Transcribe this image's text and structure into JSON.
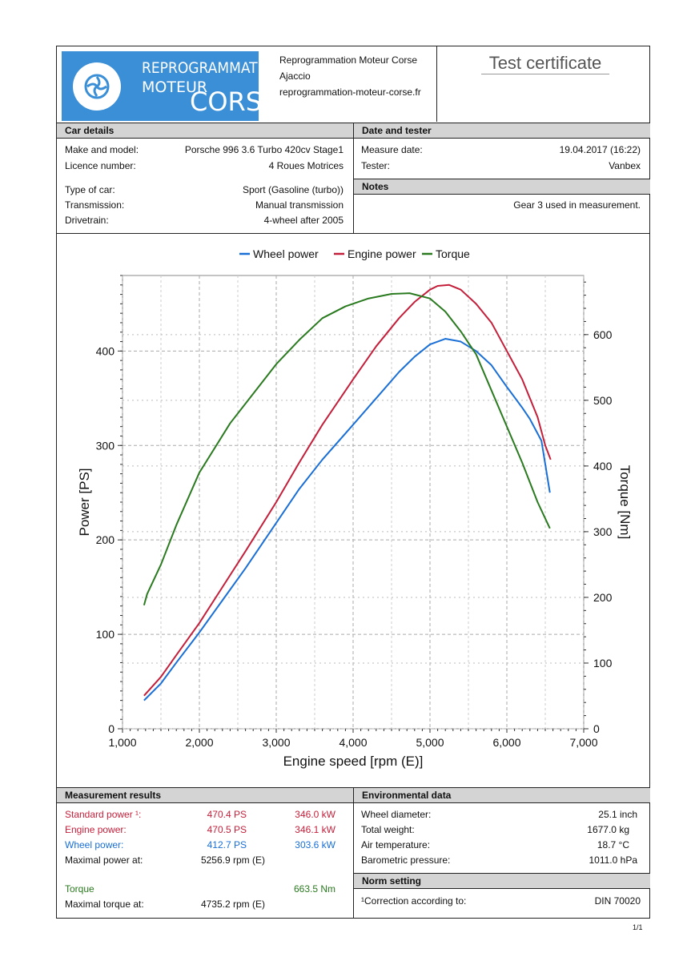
{
  "header": {
    "logo": {
      "line1": "REPROGRAMMATION",
      "line2": "MOTEUR",
      "line3": "CORSE"
    },
    "company": {
      "name": "Reprogrammation Moteur Corse",
      "city": "Ajaccio",
      "website": "reprogrammation-moteur-corse.fr"
    },
    "title": "Test certificate"
  },
  "car_details": {
    "heading": "Car details",
    "rows": [
      {
        "label": "Make and model:",
        "value": "Porsche 996 3.6 Turbo 420cv Stage1"
      },
      {
        "label": "Licence number:",
        "value": "4 Roues Motrices"
      },
      {
        "label": "Type of car:",
        "value": "Sport (Gasoline (turbo))"
      },
      {
        "label": "Transmission:",
        "value": "Manual transmission"
      },
      {
        "label": "Drivetrain:",
        "value": "4-wheel after 2005"
      }
    ]
  },
  "date_tester": {
    "heading": "Date and tester",
    "rows": [
      {
        "label": "Measure date:",
        "value": "19.04.2017 (16:22)"
      },
      {
        "label": "Tester:",
        "value": "Vanbex"
      }
    ]
  },
  "notes": {
    "heading": "Notes",
    "text": "Gear 3 used in measurement."
  },
  "colors": {
    "wheel": "#1a6fd6",
    "engine": "#c41f3a",
    "torque": "#2a7a1f"
  },
  "chart_data": {
    "type": "line",
    "title": "",
    "xlabel": "Engine speed [rpm (E)]",
    "ylabel": "Power [PS]",
    "y2label": "Torque [Nm]",
    "xlim": [
      1000,
      7000
    ],
    "ylim": [
      0,
      480
    ],
    "y2lim": [
      0,
      690
    ],
    "x_ticks": [
      1000,
      2000,
      3000,
      4000,
      5000,
      6000,
      7000
    ],
    "x_tick_labels": [
      "1,000",
      "2,000",
      "3,000",
      "4,000",
      "5,000",
      "6,000",
      "7,000"
    ],
    "y_ticks": [
      0,
      100,
      200,
      300,
      400
    ],
    "y_tick_labels": [
      "0",
      "100",
      "200",
      "300",
      "400"
    ],
    "y2_ticks": [
      0,
      100,
      200,
      300,
      400,
      500,
      600
    ],
    "y2_tick_labels": [
      "0",
      "100",
      "200",
      "300",
      "400",
      "500",
      "600"
    ],
    "grid": true,
    "legend": "top",
    "series": [
      {
        "name": "Wheel power",
        "axis": "left",
        "color": "#1a6fd6",
        "x": [
          1280,
          1500,
          1700,
          2000,
          2300,
          2600,
          3000,
          3300,
          3600,
          4000,
          4300,
          4600,
          4800,
          5000,
          5200,
          5400,
          5600,
          5800,
          6000,
          6200,
          6300,
          6450,
          6560
        ],
        "y": [
          30,
          48,
          70,
          102,
          136,
          170,
          218,
          254,
          285,
          322,
          350,
          378,
          394,
          407,
          413,
          410,
          400,
          385,
          362,
          340,
          328,
          305,
          250
        ]
      },
      {
        "name": "Engine power",
        "axis": "left",
        "color": "#c41f3a",
        "x": [
          1280,
          1500,
          1700,
          2000,
          2300,
          2600,
          3000,
          3300,
          3600,
          4000,
          4300,
          4600,
          4800,
          5000,
          5100,
          5250,
          5400,
          5600,
          5800,
          6000,
          6200,
          6400,
          6500,
          6570
        ],
        "y": [
          35,
          55,
          78,
          112,
          150,
          188,
          240,
          282,
          322,
          370,
          405,
          435,
          452,
          465,
          469,
          470,
          465,
          450,
          430,
          400,
          370,
          330,
          300,
          285
        ]
      },
      {
        "name": "Torque",
        "axis": "right",
        "color": "#2a7a1f",
        "x": [
          1280,
          1320,
          1500,
          1700,
          2000,
          2400,
          2800,
          3000,
          3300,
          3600,
          3900,
          4200,
          4500,
          4735,
          5000,
          5200,
          5400,
          5600,
          5800,
          6000,
          6200,
          6400,
          6560
        ],
        "y": [
          188,
          205,
          250,
          310,
          390,
          465,
          525,
          555,
          592,
          625,
          643,
          655,
          662,
          663,
          655,
          635,
          605,
          570,
          515,
          460,
          405,
          345,
          305
        ]
      }
    ]
  },
  "measurement": {
    "heading": "Measurement results",
    "standard": {
      "label": "Standard power ¹:",
      "ps": "470.4 PS",
      "kw": "346.0 kW"
    },
    "engine": {
      "label": "Engine power:",
      "ps": "470.5 PS",
      "kw": "346.1 kW"
    },
    "wheel": {
      "label": "Wheel power:",
      "ps": "412.7 PS",
      "kw": "303.6 kW"
    },
    "max_power": {
      "label": "Maximal power at:",
      "value": "5256.9 rpm (E)"
    },
    "torque": {
      "label": "Torque",
      "value": "663.5 Nm"
    },
    "max_torque": {
      "label": "Maximal torque at:",
      "value": "4735.2 rpm (E)"
    }
  },
  "environment": {
    "heading": "Environmental data",
    "rows": [
      {
        "label": "Wheel diameter:",
        "value": "25.1 inch"
      },
      {
        "label": "Total weight:",
        "value": "1677.0 kg"
      },
      {
        "label": "Air temperature:",
        "value": "18.7 °C"
      },
      {
        "label": "Barometric pressure:",
        "value": "1011.0 hPa"
      }
    ]
  },
  "norm": {
    "heading": "Norm setting",
    "label": "¹Correction according to:",
    "value": "DIN 70020"
  },
  "page_number": "1/1"
}
